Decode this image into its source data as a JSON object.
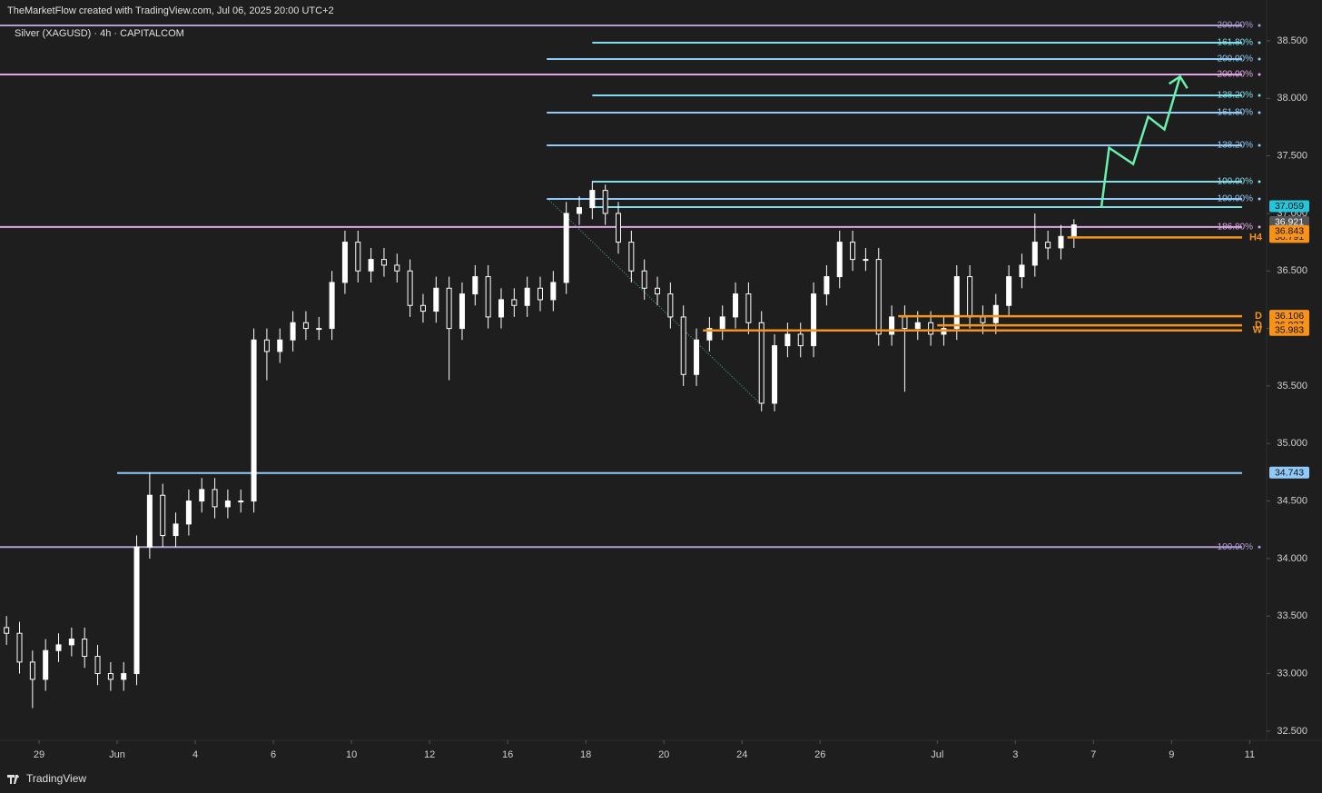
{
  "header": {
    "attribution": "TheMarketFlow created with TradingView.com, Jul 06, 2025 20:00 UTC+2",
    "symbol": "Silver (XAGUSD) · 4h · CAPITALCOM",
    "brand": "TradingView"
  },
  "chart_data": {
    "type": "candlestick",
    "x": [
      1,
      3,
      5,
      7,
      9,
      11,
      13,
      15,
      17,
      19,
      21,
      23,
      25,
      27,
      29,
      31,
      33,
      35,
      37,
      39,
      41,
      43,
      45,
      47,
      49,
      51,
      53,
      55,
      57,
      59,
      61,
      63,
      65,
      67,
      69,
      71,
      73,
      75,
      77,
      79,
      81,
      83,
      85,
      87,
      89,
      91,
      93,
      95,
      97,
      99,
      101,
      103,
      105,
      107,
      109,
      111,
      113,
      115,
      117,
      119,
      121,
      123,
      125,
      127,
      129,
      131,
      133,
      135,
      137,
      139,
      141,
      143,
      145,
      147,
      149,
      151,
      153,
      155,
      157,
      159,
      161,
      163,
      165
    ],
    "open": [
      33.4,
      33.35,
      33.1,
      32.95,
      33.2,
      33.25,
      33.3,
      33.15,
      33.0,
      32.95,
      33.0,
      34.1,
      34.55,
      34.2,
      34.3,
      34.5,
      34.6,
      34.45,
      34.5,
      34.5,
      35.9,
      35.8,
      35.9,
      36.05,
      36.0,
      36.0,
      36.4,
      36.75,
      36.5,
      36.6,
      36.55,
      36.5,
      36.2,
      36.15,
      36.35,
      36.0,
      36.3,
      36.45,
      36.1,
      36.25,
      36.2,
      36.35,
      36.25,
      36.4,
      37.0,
      37.05,
      37.2,
      37.0,
      36.75,
      36.5,
      36.35,
      36.3,
      36.1,
      35.6,
      35.9,
      36.0,
      36.1,
      36.3,
      36.05,
      35.35,
      35.85,
      35.95,
      35.85,
      36.3,
      36.45,
      36.75,
      36.6,
      36.6,
      35.95,
      36.1,
      36.0,
      36.05,
      35.95,
      36.0,
      36.45,
      36.1,
      36.05,
      36.2,
      36.45,
      36.55,
      36.75,
      36.7,
      36.8
    ],
    "high": [
      33.5,
      33.45,
      33.2,
      33.3,
      33.35,
      33.4,
      33.4,
      33.25,
      33.1,
      33.1,
      34.2,
      34.75,
      34.65,
      34.4,
      34.6,
      34.7,
      34.7,
      34.6,
      34.6,
      36.0,
      36.0,
      36.0,
      36.15,
      36.15,
      36.1,
      36.5,
      36.85,
      36.85,
      36.7,
      36.7,
      36.65,
      36.6,
      36.3,
      36.45,
      36.45,
      36.4,
      36.55,
      36.55,
      36.35,
      36.35,
      36.45,
      36.45,
      36.5,
      37.1,
      37.15,
      37.28,
      37.25,
      37.1,
      36.85,
      36.6,
      36.45,
      36.4,
      36.2,
      36.0,
      36.1,
      36.2,
      36.4,
      36.4,
      36.15,
      35.95,
      36.05,
      36.05,
      36.4,
      36.55,
      36.85,
      36.85,
      36.7,
      36.7,
      36.2,
      36.2,
      36.15,
      36.15,
      36.1,
      36.55,
      36.55,
      36.2,
      36.3,
      36.55,
      36.65,
      37.0,
      36.85,
      36.9,
      36.95
    ],
    "low": [
      33.25,
      33.0,
      32.7,
      32.85,
      33.1,
      33.15,
      33.05,
      32.9,
      32.85,
      32.85,
      32.9,
      34.0,
      34.1,
      34.1,
      34.2,
      34.4,
      34.35,
      34.35,
      34.4,
      34.4,
      35.55,
      35.7,
      35.8,
      35.9,
      35.9,
      35.9,
      36.3,
      36.4,
      36.4,
      36.45,
      36.4,
      36.1,
      36.05,
      36.05,
      35.55,
      35.9,
      36.2,
      36.0,
      36.0,
      36.1,
      36.1,
      36.15,
      36.15,
      36.3,
      36.9,
      36.95,
      36.9,
      36.65,
      36.4,
      36.25,
      36.2,
      36.0,
      35.5,
      35.5,
      35.8,
      35.9,
      36.0,
      35.95,
      35.28,
      35.28,
      35.75,
      35.75,
      35.75,
      36.2,
      36.35,
      36.5,
      36.5,
      35.85,
      35.85,
      35.45,
      35.9,
      35.85,
      35.85,
      35.9,
      36.0,
      35.95,
      35.95,
      36.1,
      36.35,
      36.45,
      36.6,
      36.6,
      36.7
    ],
    "close": [
      33.35,
      33.1,
      32.95,
      33.2,
      33.25,
      33.3,
      33.15,
      33.0,
      32.95,
      33.0,
      34.1,
      34.55,
      34.2,
      34.3,
      34.5,
      34.6,
      34.45,
      34.5,
      34.5,
      35.9,
      35.8,
      35.9,
      36.05,
      36.0,
      36.0,
      36.4,
      36.75,
      36.5,
      36.6,
      36.55,
      36.5,
      36.2,
      36.15,
      36.35,
      36.0,
      36.3,
      36.45,
      36.1,
      36.25,
      36.2,
      36.35,
      36.25,
      36.4,
      37.0,
      37.05,
      37.2,
      37.0,
      36.75,
      36.5,
      36.35,
      36.3,
      36.1,
      35.6,
      35.9,
      36.0,
      36.1,
      36.3,
      36.05,
      35.35,
      35.85,
      35.95,
      35.85,
      36.3,
      36.45,
      36.75,
      36.6,
      36.6,
      35.95,
      36.1,
      36.0,
      36.05,
      35.95,
      36.0,
      36.45,
      36.1,
      36.05,
      36.2,
      36.45,
      36.55,
      36.75,
      36.7,
      36.8,
      36.9
    ],
    "candle_color": "#ffffff",
    "xlim": [
      0,
      194.6
    ],
    "xticks": [
      {
        "value": 6,
        "label": "29"
      },
      {
        "value": 18,
        "label": "Jun"
      },
      {
        "value": 30,
        "label": "4"
      },
      {
        "value": 42,
        "label": "6"
      },
      {
        "value": 54,
        "label": "10"
      },
      {
        "value": 66,
        "label": "12"
      },
      {
        "value": 78,
        "label": "16"
      },
      {
        "value": 90,
        "label": "18"
      },
      {
        "value": 102,
        "label": "20"
      },
      {
        "value": 114,
        "label": "24"
      },
      {
        "value": 126,
        "label": "26"
      },
      {
        "value": 144,
        "label": "Jul"
      },
      {
        "value": 156,
        "label": "3"
      },
      {
        "value": 168,
        "label": "7"
      },
      {
        "value": 180,
        "label": "9"
      },
      {
        "value": 192,
        "label": "11"
      }
    ],
    "ylim": [
      32.42,
      38.855
    ],
    "yticks": [
      {
        "value": 32.5,
        "label": "32.500"
      },
      {
        "value": 33,
        "label": "33.000"
      },
      {
        "value": 33.5,
        "label": "33.500"
      },
      {
        "value": 34,
        "label": "34.000"
      },
      {
        "value": 34.5,
        "label": "34.500"
      },
      {
        "value": 35,
        "label": "35.000"
      },
      {
        "value": 35.5,
        "label": "35.500"
      },
      {
        "value": 36,
        "label": "36.000"
      },
      {
        "value": 36.5,
        "label": "36.500"
      },
      {
        "value": 37,
        "label": "37.000"
      },
      {
        "value": 37.5,
        "label": "37.500"
      },
      {
        "value": 38,
        "label": "38.000"
      },
      {
        "value": 38.5,
        "label": "38.500"
      }
    ],
    "levels": [
      {
        "value": 38.634,
        "label": "200.00%",
        "color": "#b39ddb",
        "from": 0
      },
      {
        "value": 38.484,
        "label": "161.80%",
        "color": "#80deea",
        "from": 91
      },
      {
        "value": 38.342,
        "label": "200.00%",
        "color": "#90caf9",
        "from": 84
      },
      {
        "value": 38.208,
        "label": "200.00%",
        "color": "#e1a6e8",
        "from": 0
      },
      {
        "value": 38.026,
        "label": "138.20%",
        "color": "#80deea",
        "from": 91
      },
      {
        "value": 37.876,
        "label": "161.80%",
        "color": "#90caf9",
        "from": 84
      },
      {
        "value": 37.592,
        "label": "138.20%",
        "color": "#90caf9",
        "from": 84
      },
      {
        "value": 37.276,
        "label": "100.00%",
        "color": "#80deea",
        "from": 91
      },
      {
        "value": 37.126,
        "label": "100.00%",
        "color": "#90caf9",
        "from": 84
      },
      {
        "value": 37.055,
        "color": "#80deea",
        "from": 91
      },
      {
        "value": 36.882,
        "label": "186.80%",
        "color": "#e1a6e8",
        "from": 0
      },
      {
        "value": 34.743,
        "color": "#90caf9",
        "from": 18
      },
      {
        "value": 34.1,
        "label": "100.00%",
        "color": "#b39ddb",
        "from": 0
      }
    ],
    "key_levels": [
      {
        "value": 36.791,
        "label": "H4",
        "color": "#f7931a",
        "from": 164
      },
      {
        "value": 36.106,
        "label": "D",
        "color": "#f7931a",
        "from": 138
      },
      {
        "value": 36.027,
        "label": "D",
        "color": "#f7931a",
        "from": 144
      },
      {
        "value": 35.983,
        "label": "W",
        "color": "#f7931a",
        "from": 108
      }
    ],
    "price_tags": [
      {
        "value": 37.059,
        "color": "#26c6da"
      },
      {
        "value": 36.921,
        "color": "#555555"
      },
      {
        "value": 36.843,
        "color": "#f7931a"
      },
      {
        "value": 34.743,
        "color": "#90caf9"
      }
    ],
    "projection": {
      "color": "#69f0ae",
      "x": [
        169.2,
        170.4,
        174.1,
        176.4,
        178.9,
        181.3
      ],
      "y": [
        37.05,
        37.57,
        37.43,
        37.84,
        37.73,
        38.19
      ]
    },
    "trendline": {
      "color": "#4db6ac",
      "x": [
        84.1,
        116.9
      ],
      "y": [
        37.13,
        35.34
      ]
    }
  }
}
